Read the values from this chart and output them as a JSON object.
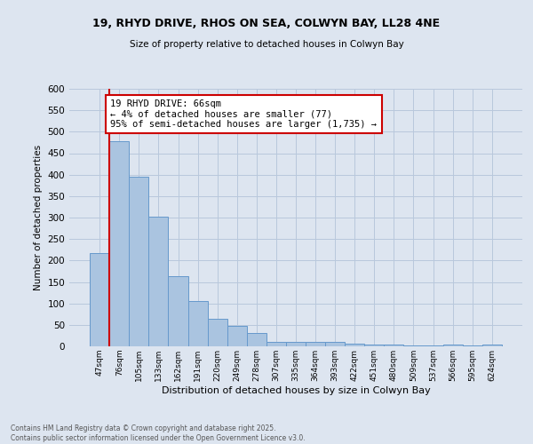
{
  "title_line1": "19, RHYD DRIVE, RHOS ON SEA, COLWYN BAY, LL28 4NE",
  "title_line2": "Size of property relative to detached houses in Colwyn Bay",
  "xlabel": "Distribution of detached houses by size in Colwyn Bay",
  "ylabel": "Number of detached properties",
  "categories": [
    "47sqm",
    "76sqm",
    "105sqm",
    "133sqm",
    "162sqm",
    "191sqm",
    "220sqm",
    "249sqm",
    "278sqm",
    "307sqm",
    "335sqm",
    "364sqm",
    "393sqm",
    "422sqm",
    "451sqm",
    "480sqm",
    "509sqm",
    "537sqm",
    "566sqm",
    "595sqm",
    "624sqm"
  ],
  "values": [
    218,
    478,
    395,
    302,
    163,
    105,
    65,
    47,
    31,
    10,
    10,
    10,
    10,
    7,
    5,
    5,
    2,
    2,
    5,
    2,
    5
  ],
  "bar_color": "#aac4e0",
  "bar_edge_color": "#6699cc",
  "bg_color": "#dde5f0",
  "grid_color": "#b8c8dc",
  "annotation_text": "19 RHYD DRIVE: 66sqm\n← 4% of detached houses are smaller (77)\n95% of semi-detached houses are larger (1,735) →",
  "annotation_box_color": "#ffffff",
  "annotation_box_edge": "#cc0000",
  "red_line_x": 0.5,
  "ylim": [
    0,
    600
  ],
  "yticks": [
    0,
    50,
    100,
    150,
    200,
    250,
    300,
    350,
    400,
    450,
    500,
    550,
    600
  ],
  "footer_line1": "Contains HM Land Registry data © Crown copyright and database right 2025.",
  "footer_line2": "Contains public sector information licensed under the Open Government Licence v3.0."
}
